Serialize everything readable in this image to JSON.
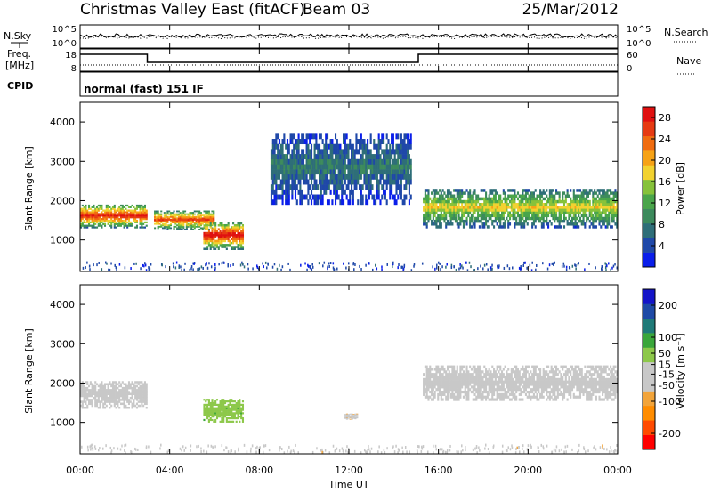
{
  "header": {
    "radar": "Christmas Valley East (fitACF)",
    "beam": "Beam 03",
    "date": "25/Mar/2012"
  },
  "left_labels": {
    "nsky": "N.Sky",
    "freq_1": "Freq.",
    "freq_2": "[MHz]",
    "cpid": "CPID"
  },
  "right_labels": {
    "nsearch": "N.Search",
    "nave": "Nave"
  },
  "cpid_text": "normal (fast) 151 IF",
  "x_axis": {
    "label": "Time UT",
    "ticks": [
      "00:00",
      "04:00",
      "08:00",
      "12:00",
      "16:00",
      "20:00",
      "00:00"
    ]
  },
  "colors": {
    "power": [
      "#0a1eea",
      "#1f48a8",
      "#2e6e78",
      "#3c8a5c",
      "#49a54a",
      "#86c23a",
      "#f2d230",
      "#f6a216",
      "#f06c10",
      "#e63a12",
      "#e01010"
    ],
    "velocity": [
      "#ff0000",
      "#ff4a00",
      "#ff8c00",
      "#f2a43a",
      "#c8c8c8",
      "#c8c8c8",
      "#8dc84a",
      "#3aa63a",
      "#1f7a78",
      "#1e4aa6",
      "#1414c8"
    ]
  },
  "chart_data": [
    {
      "type": "line",
      "panel": "noise",
      "y_axis_left": {
        "ticks": [
          "10^5",
          "10^0"
        ]
      },
      "y_axis_right": {
        "ticks": [
          "10^5",
          "10^0"
        ]
      },
      "series": [
        {
          "name": "N.Sky",
          "style": "solid"
        },
        {
          "name": "N.Search",
          "style": "dotted"
        }
      ]
    },
    {
      "type": "line",
      "panel": "frequency",
      "y_axis_left": {
        "ticks": [
          "18",
          "8"
        ]
      },
      "y_axis_right": {
        "ticks": [
          "60",
          "0"
        ]
      },
      "series": [
        {
          "name": "Freq.",
          "style": "solid"
        },
        {
          "name": "Nave",
          "style": "dotted"
        }
      ]
    },
    {
      "type": "heatmap",
      "panel": "power",
      "xlabel": "Time UT",
      "ylabel": "Slant Range [km]",
      "y_ticks": [
        "1000",
        "2000",
        "3000",
        "4000"
      ],
      "ylim": [
        200,
        4500
      ],
      "xlim": [
        "00:00",
        "24:00"
      ],
      "colorbar": {
        "label": "Power [dB]",
        "ticks": [
          "4",
          "8",
          "12",
          "16",
          "20",
          "24",
          "28"
        ],
        "range": [
          0,
          30
        ]
      },
      "features": [
        {
          "t_start": 0.0,
          "t_end": 3.0,
          "range_center": 1600,
          "range_width": 600,
          "value": 28
        },
        {
          "t_start": 3.3,
          "t_end": 6.0,
          "range_center": 1500,
          "range_width": 500,
          "value": 26
        },
        {
          "t_start": 5.5,
          "t_end": 7.3,
          "range_center": 1100,
          "range_width": 700,
          "value": 30
        },
        {
          "t_start": 8.5,
          "t_end": 14.8,
          "range_center": 2800,
          "range_width": 1800,
          "value": 8
        },
        {
          "t_start": 15.3,
          "t_end": 24.0,
          "range_center": 1800,
          "range_width": 1000,
          "value": 18
        }
      ]
    },
    {
      "type": "heatmap",
      "panel": "velocity",
      "xlabel": "Time UT",
      "ylabel": "Slant Range [km]",
      "y_ticks": [
        "1000",
        "2000",
        "3000",
        "4000"
      ],
      "ylim": [
        200,
        4500
      ],
      "xlim": [
        "00:00",
        "24:00"
      ],
      "colorbar": {
        "label": "Velocity [m s⁻¹]",
        "ticks": [
          "200",
          "100",
          "50",
          "15",
          "-15",
          "-50",
          "-100",
          "-200"
        ],
        "range": [
          -250,
          250
        ]
      },
      "features": [
        {
          "t_start": 0.0,
          "t_end": 3.0,
          "range_center": 1700,
          "range_width": 700,
          "value": 0
        },
        {
          "t_start": 5.5,
          "t_end": 7.3,
          "range_center": 1300,
          "range_width": 600,
          "value": 60
        },
        {
          "t_start": 15.3,
          "t_end": 24.0,
          "range_center": 2000,
          "range_width": 900,
          "value": 0
        },
        {
          "t_start": 11.8,
          "t_end": 12.4,
          "range_center": 1150,
          "range_width": 150,
          "value": -60
        }
      ]
    }
  ]
}
